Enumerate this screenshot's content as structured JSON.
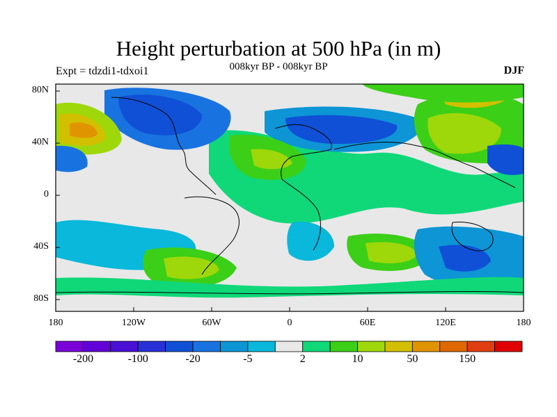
{
  "title": "Height perturbation at 500 hPa (in m)",
  "subtitle": "008kyr BP - 008kyr BP",
  "experiment": "Expt = tdzdi1-tdxoi1",
  "season": "DJF",
  "axes": {
    "lat_ticks": [
      "80N",
      "40N",
      "0",
      "40S",
      "80S"
    ],
    "lon_ticks": [
      "180",
      "120W",
      "60W",
      "0",
      "60E",
      "120E",
      "180"
    ]
  },
  "colorbar": {
    "colors": [
      "#7a00d9",
      "#6200d8",
      "#4a10d6",
      "#2a30d8",
      "#1050d6",
      "#1873e0",
      "#0d95d6",
      "#09b8da",
      "#e8e8e8",
      "#10d879",
      "#3ccf17",
      "#9ed80a",
      "#d2c000",
      "#e09400",
      "#e06800",
      "#e03d10",
      "#e00000"
    ],
    "labels": [
      "-200",
      "-100",
      "-20",
      "-5",
      "2",
      "10",
      "50",
      "150"
    ]
  }
}
